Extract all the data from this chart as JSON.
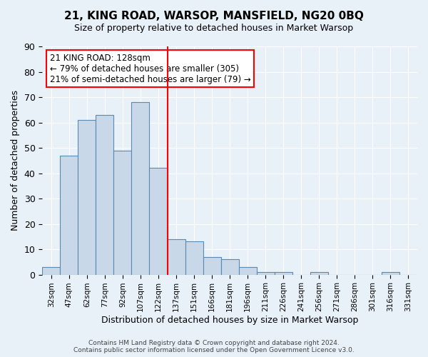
{
  "title": "21, KING ROAD, WARSOP, MANSFIELD, NG20 0BQ",
  "subtitle": "Size of property relative to detached houses in Market Warsop",
  "xlabel": "Distribution of detached houses by size in Market Warsop",
  "ylabel": "Number of detached properties",
  "bar_values": [
    3,
    47,
    61,
    63,
    49,
    68,
    42,
    14,
    13,
    7,
    6,
    3,
    1,
    1,
    0,
    1,
    0,
    0,
    0,
    1,
    0
  ],
  "x_tick_labels": [
    "32sqm",
    "47sqm",
    "62sqm",
    "77sqm",
    "92sqm",
    "107sqm",
    "122sqm",
    "137sqm",
    "151sqm",
    "166sqm",
    "181sqm",
    "196sqm",
    "211sqm",
    "226sqm",
    "241sqm",
    "256sqm",
    "271sqm",
    "286sqm",
    "301sqm",
    "316sqm",
    "331sqm"
  ],
  "bar_color": "#c8d8e8",
  "bar_edge_color": "#5a8ab0",
  "vline_color": "red",
  "vline_x": 6.5,
  "ylim": [
    0,
    90
  ],
  "yticks": [
    0,
    10,
    20,
    30,
    40,
    50,
    60,
    70,
    80,
    90
  ],
  "annotation_title": "21 KING ROAD: 128sqm",
  "annotation_line1": "← 79% of detached houses are smaller (305)",
  "annotation_line2": "21% of semi-detached houses are larger (79) →",
  "annotation_box_color": "white",
  "annotation_box_edge_color": "red",
  "footer_line1": "Contains HM Land Registry data © Crown copyright and database right 2024.",
  "footer_line2": "Contains public sector information licensed under the Open Government Licence v3.0.",
  "background_color": "#e8f0f8",
  "grid_color": "white",
  "fig_width": 6.0,
  "fig_height": 5.0,
  "dpi": 100
}
